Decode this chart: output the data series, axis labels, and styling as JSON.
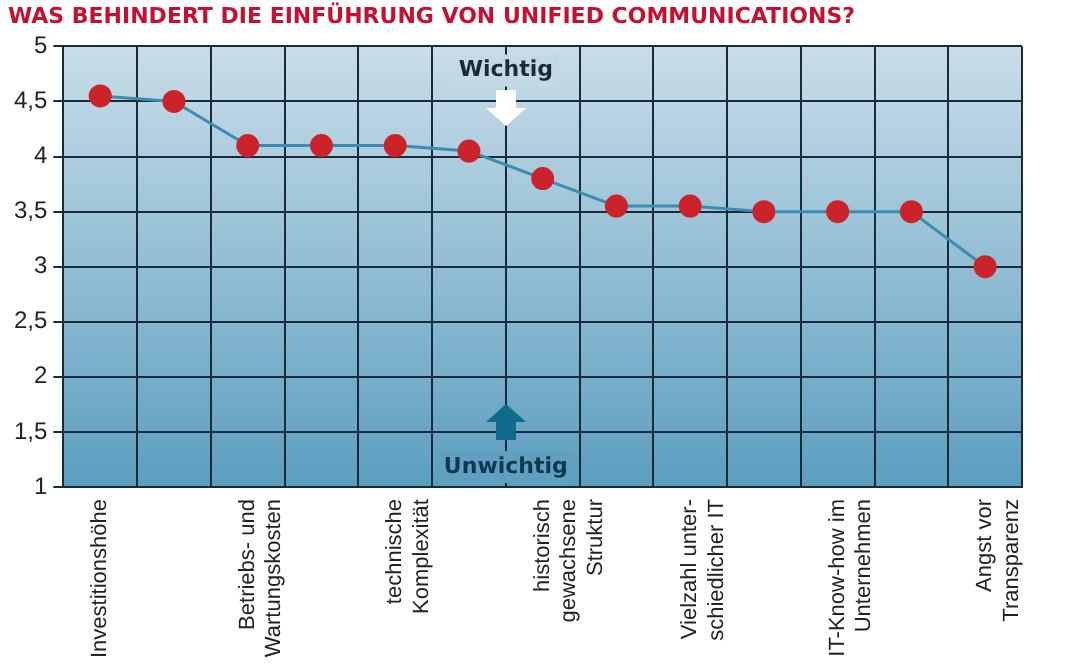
{
  "chart_data": {
    "type": "line",
    "title": "WAS BEHINDERT DIE EINFÜHRUNG VON UNIFIED COMMUNICATIONS?",
    "categories": [
      "Investitionshöhe",
      null,
      "Betriebs- und\nWartungskosten",
      null,
      "technische\nKomplexität",
      null,
      "historisch\ngewachsene\nStruktur",
      null,
      "Vielzahl unter-\nschiedlicher IT",
      null,
      "IT-Know-how im\nUnternehmen",
      null,
      "Angst vor\nTransparenz"
    ],
    "series": [
      {
        "color": "#3a8db0",
        "colors": [
          "#cc2229",
          "#cc2229",
          "#cc2229",
          "#cc2229",
          "#cc2229",
          "#cc2229",
          "#cc2229",
          "#cc2229",
          "#cc2229",
          "#cc2229",
          "#cc2229",
          "#cc2229",
          "#cc2229"
        ],
        "values": [
          4.55,
          4.5,
          4.1,
          4.1,
          4.1,
          4.05,
          3.8,
          3.55,
          3.55,
          3.5,
          3.5,
          3.5,
          3.0
        ]
      }
    ],
    "marker": "circle",
    "ylim": [
      1,
      5
    ],
    "yticks": [
      1,
      {
        "value": 1.5,
        "label": "1,5"
      },
      2,
      {
        "value": 2.5,
        "label": "2,5"
      },
      3,
      {
        "value": 3.5,
        "label": "3,5"
      },
      4,
      {
        "value": 4.5,
        "label": "4,5"
      },
      5
    ],
    "grid": true,
    "legend": false,
    "annotations": [
      "Wichtig",
      "Unwichtig"
    ]
  }
}
